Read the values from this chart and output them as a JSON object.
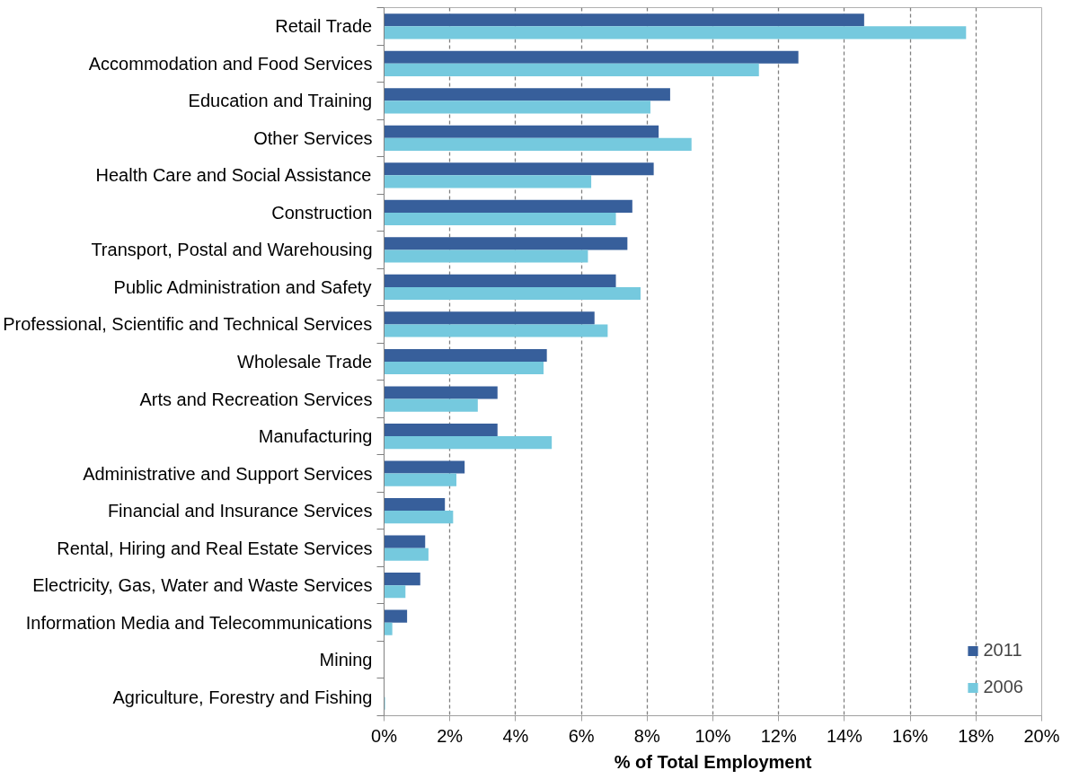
{
  "chart_data": {
    "type": "bar",
    "orientation": "horizontal",
    "xlabel": "% of Total Employment",
    "categories": [
      "Retail Trade",
      "Accommodation and Food Services",
      "Education and Training",
      "Other Services",
      "Health Care and Social Assistance",
      "Construction",
      "Transport, Postal and Warehousing",
      "Public Administration and Safety",
      "Professional, Scientific and Technical Services",
      "Wholesale Trade",
      "Arts and Recreation Services",
      "Manufacturing",
      "Administrative and Support Services",
      "Financial and Insurance Services",
      "Rental, Hiring and Real Estate Services",
      "Electricity, Gas, Water and Waste Services",
      "Information Media and Telecommunications",
      "Mining",
      "Agriculture, Forestry and Fishing"
    ],
    "series": [
      {
        "name": "2011",
        "color": "#375f9b",
        "values": [
          14.6,
          12.6,
          8.7,
          8.35,
          8.2,
          7.55,
          7.4,
          7.05,
          6.4,
          4.95,
          3.45,
          3.45,
          2.45,
          1.85,
          1.25,
          1.1,
          0.7,
          0,
          0
        ]
      },
      {
        "name": "2006",
        "color": "#75c9de",
        "values": [
          17.7,
          11.4,
          8.1,
          9.35,
          6.3,
          7.05,
          6.2,
          7.8,
          6.8,
          4.85,
          2.85,
          5.1,
          2.2,
          2.1,
          1.35,
          0.65,
          0.25,
          0,
          0.03
        ]
      }
    ],
    "xlim": [
      0,
      20
    ],
    "xticks": [
      {
        "value": 0,
        "label": "0%"
      },
      {
        "value": 2,
        "label": "2%"
      },
      {
        "value": 4,
        "label": "4%"
      },
      {
        "value": 6,
        "label": "6%"
      },
      {
        "value": 8,
        "label": "8%"
      },
      {
        "value": 10,
        "label": "10%"
      },
      {
        "value": 12,
        "label": "12%"
      },
      {
        "value": 14,
        "label": "14%"
      },
      {
        "value": 16,
        "label": "16%"
      },
      {
        "value": 18,
        "label": "18%"
      },
      {
        "value": 20,
        "label": "20%"
      }
    ],
    "grid": "x",
    "legend": "bottom right"
  }
}
